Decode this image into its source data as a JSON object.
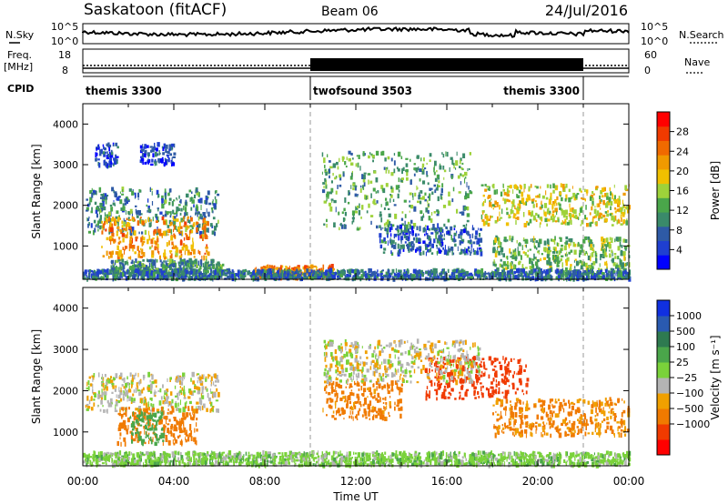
{
  "header": {
    "site": "Saskatoon (fitACF)",
    "beam": "Beam 06",
    "date": "24/Jul/2016"
  },
  "meta_panel": {
    "nsky_label": "N.Sky",
    "nsky_ticks": [
      "10^5",
      "10^0"
    ],
    "nsearch_label": "N.Search",
    "nsearch_ticks": [
      "10^5",
      "10^0"
    ],
    "freq_label_1": "Freq.",
    "freq_label_2": "[MHz]",
    "freq_ticks": [
      "18",
      "8"
    ],
    "nave_label": "Nave",
    "nave_ticks": [
      "60",
      "0"
    ]
  },
  "cpid": {
    "label": "CPID",
    "segments": [
      {
        "name": "themis 3300",
        "start_hr": 0,
        "end_hr": 10.0,
        "label_align": "left"
      },
      {
        "name": "twofsound 3503",
        "start_hr": 10.0,
        "end_hr": 22.0,
        "label_align": "left"
      },
      {
        "name": "themis 3300",
        "start_hr": 22.0,
        "end_hr": 24,
        "label_align": "right"
      }
    ]
  },
  "colors": {
    "power_scale": [
      "#0000ff",
      "#1f3fd0",
      "#2e5aa6",
      "#3a8a6a",
      "#4aa64a",
      "#9ed23a",
      "#f0c000",
      "#f09a00",
      "#f06a00",
      "#f03a00",
      "#ff0000"
    ],
    "velocity_scale": [
      "#ff0000",
      "#f03a00",
      "#f07a00",
      "#f0a000",
      "#b4b4b4",
      "#7ad23a",
      "#4aa64a",
      "#2e7a50",
      "#2a5ab0",
      "#1030e0"
    ]
  },
  "chart_data": [
    {
      "type": "heatmap",
      "panel": "power",
      "ylabel": "Slant Range [km]",
      "ylim": [
        180,
        4500
      ],
      "yticks": [
        1000,
        2000,
        3000,
        4000
      ],
      "xlim": [
        0,
        24
      ],
      "xticks": [
        "00:00",
        "04:00",
        "08:00",
        "12:00",
        "16:00",
        "20:00",
        "00:00"
      ],
      "xlabel": "Time UT",
      "colorbar": {
        "label": "Power [dB]",
        "ticks": [
          4,
          8,
          12,
          16,
          20,
          24,
          28
        ],
        "range": [
          0,
          32
        ]
      },
      "regions": [
        {
          "t0": 0.1,
          "t1": 6.0,
          "r0": 1300,
          "r1": 2400,
          "value": 10
        },
        {
          "t0": 0.8,
          "t1": 5.5,
          "r0": 700,
          "r1": 1700,
          "value": 22
        },
        {
          "t0": 0.5,
          "t1": 1.5,
          "r0": 2950,
          "r1": 3500,
          "value": 5
        },
        {
          "t0": 2.5,
          "t1": 4.0,
          "r0": 3000,
          "r1": 3500,
          "value": 5
        },
        {
          "t0": 1.2,
          "t1": 6.2,
          "r0": 350,
          "r1": 650,
          "value": 11
        },
        {
          "t0": 7.5,
          "t1": 11.0,
          "r0": 200,
          "r1": 500,
          "value": 24
        },
        {
          "t0": 10.5,
          "t1": 17.0,
          "r0": 1400,
          "r1": 3300,
          "value": 12
        },
        {
          "t0": 13.0,
          "t1": 17.5,
          "r0": 800,
          "r1": 1500,
          "value": 7
        },
        {
          "t0": 17.5,
          "t1": 24.0,
          "r0": 1500,
          "r1": 2500,
          "value": 18
        },
        {
          "t0": 18.0,
          "t1": 24.0,
          "r0": 400,
          "r1": 1200,
          "value": 14
        },
        {
          "t0": 0.0,
          "t1": 24.0,
          "r0": 180,
          "r1": 400,
          "value": 8
        }
      ]
    },
    {
      "type": "heatmap",
      "panel": "velocity",
      "ylabel": "Slant Range [km]",
      "ylim": [
        180,
        4500
      ],
      "yticks": [
        1000,
        2000,
        3000,
        4000
      ],
      "xlim": [
        0,
        24
      ],
      "xticks": [
        "00:00",
        "04:00",
        "08:00",
        "12:00",
        "16:00",
        "20:00",
        "00:00"
      ],
      "xlabel": "Time UT",
      "colorbar": {
        "label": "Velocity [m s⁻¹]",
        "ticks": [
          "1000",
          "500",
          "100",
          "25",
          "−25",
          "−100",
          "−500",
          "−1000"
        ]
      },
      "regions": [
        {
          "t0": 0.1,
          "t1": 6.0,
          "r0": 1500,
          "r1": 2400,
          "value": 0
        },
        {
          "t0": 1.5,
          "t1": 5.0,
          "r0": 700,
          "r1": 1600,
          "value": -200
        },
        {
          "t0": 2.0,
          "t1": 3.5,
          "r0": 700,
          "r1": 1500,
          "value": 200
        },
        {
          "t0": 10.5,
          "t1": 14.0,
          "r0": 1300,
          "r1": 2200,
          "value": -150
        },
        {
          "t0": 15.0,
          "t1": 19.5,
          "r0": 1800,
          "r1": 2800,
          "value": -600
        },
        {
          "t0": 18.0,
          "t1": 24.0,
          "r0": 900,
          "r1": 1800,
          "value": -120
        },
        {
          "t0": 10.5,
          "t1": 17.5,
          "r0": 2200,
          "r1": 3200,
          "value": 0
        },
        {
          "t0": 0.0,
          "t1": 24.0,
          "r0": 180,
          "r1": 500,
          "value": 60
        }
      ]
    }
  ]
}
